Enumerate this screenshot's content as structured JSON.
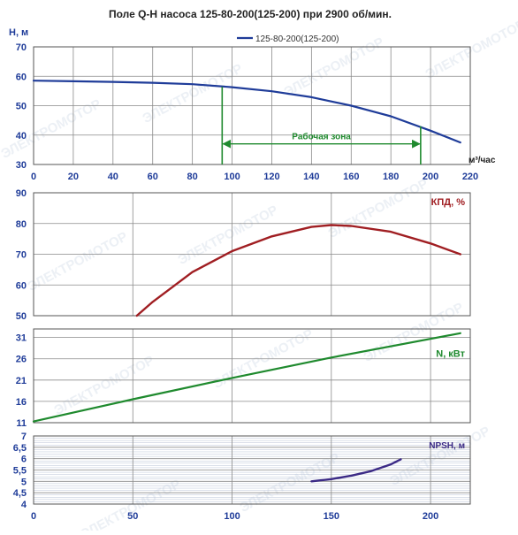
{
  "title": "Поле Q-H насоса 125-80-200(125-200) при 2900 об/мин.",
  "legend_label": "125-80-200(125-200)",
  "watermark": "ЭЛЕКТРОМОТОР",
  "colors": {
    "qh": "#1f3c99",
    "eff": "#a01e22",
    "power": "#1f8a2e",
    "npsh": "#3b2a86",
    "work_zone": "#1f8a2e",
    "axis_text_blue": "#1f3c99"
  },
  "chart_data": [
    {
      "id": "qh",
      "type": "line",
      "title": "Поле Q-H насоса 125-80-200(125-200) при 2900 об/мин.",
      "ylabel": "H, м",
      "xlabel": "м³/час",
      "xlim": [
        0,
        220
      ],
      "ylim": [
        30,
        70
      ],
      "x_ticks": [
        0,
        20,
        40,
        60,
        80,
        100,
        120,
        140,
        160,
        180,
        200,
        220
      ],
      "y_ticks": [
        30,
        40,
        50,
        60,
        70
      ],
      "x_tick_labels": [
        "0",
        "20",
        "40",
        "60",
        "80",
        "100",
        "120",
        "140",
        "160",
        "180",
        "200",
        "220"
      ],
      "y_tick_labels": [
        "30",
        "40",
        "50",
        "60",
        "70"
      ],
      "series": [
        {
          "name": "125-80-200(125-200)",
          "x": [
            0,
            20,
            40,
            60,
            80,
            100,
            120,
            140,
            160,
            180,
            200,
            215
          ],
          "y": [
            58.5,
            58.3,
            58.1,
            57.8,
            57.3,
            56.3,
            54.9,
            52.9,
            50.0,
            46.4,
            41.5,
            37.5
          ]
        }
      ],
      "annotation": {
        "label": "Рабочая зона",
        "x_start": 95,
        "x_end": 195,
        "arrow_y": 37,
        "h_start": 56.4,
        "h_end": 43.0
      }
    },
    {
      "id": "efficiency",
      "type": "line",
      "ylabel": "КПД, %",
      "xlim": [
        0,
        220
      ],
      "ylim": [
        50,
        90
      ],
      "y_ticks": [
        50,
        60,
        70,
        80,
        90
      ],
      "y_tick_labels": [
        "50",
        "60",
        "70",
        "80",
        "90"
      ],
      "series": [
        {
          "x": [
            52,
            60,
            80,
            100,
            120,
            140,
            150,
            160,
            180,
            200,
            215
          ],
          "y": [
            50.0,
            54.5,
            64.2,
            71.0,
            75.8,
            78.9,
            79.5,
            79.2,
            77.3,
            73.5,
            70.0
          ]
        }
      ]
    },
    {
      "id": "power",
      "type": "line",
      "ylabel": "N, кВт",
      "xlim": [
        0,
        220
      ],
      "ylim": [
        11,
        33
      ],
      "y_ticks": [
        11,
        16,
        21,
        26,
        31
      ],
      "y_tick_labels": [
        "11",
        "16",
        "21",
        "26",
        "31"
      ],
      "series": [
        {
          "x": [
            0,
            50,
            100,
            150,
            215
          ],
          "y": [
            11.3,
            16.5,
            21.5,
            26.3,
            32.0
          ]
        }
      ]
    },
    {
      "id": "npsh",
      "type": "line",
      "ylabel": "NPSH, м",
      "xlim": [
        0,
        220
      ],
      "ylim": [
        4,
        7
      ],
      "y_ticks": [
        4,
        4.5,
        5,
        5.5,
        6,
        6.5,
        7
      ],
      "y_tick_labels": [
        "4",
        "4,5",
        "5",
        "5,5",
        "6",
        "6,5",
        "7"
      ],
      "x_ticks": [
        0,
        50,
        100,
        150,
        200
      ],
      "x_tick_labels": [
        "0",
        "50",
        "100",
        "150",
        "200"
      ],
      "series": [
        {
          "x": [
            140,
            150,
            160,
            170,
            180,
            185
          ],
          "y": [
            5.0,
            5.1,
            5.25,
            5.45,
            5.75,
            5.97
          ]
        }
      ]
    }
  ]
}
